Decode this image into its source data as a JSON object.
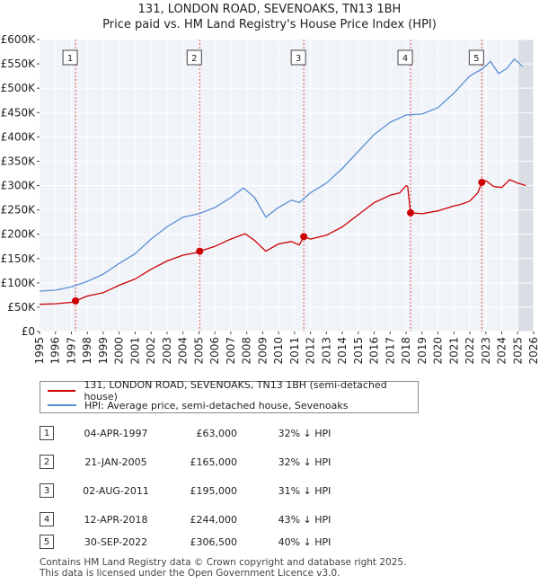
{
  "chart_data": {
    "type": "line",
    "title": "131, LONDON ROAD, SEVENOAKS, TN13 1BH",
    "subtitle": "Price paid vs. HM Land Registry's House Price Index (HPI)",
    "xlabel": "",
    "ylabel": "",
    "xlim": [
      1995,
      2026
    ],
    "ylim": [
      0,
      600000
    ],
    "y_ticks": [
      0,
      50000,
      100000,
      150000,
      200000,
      250000,
      300000,
      350000,
      400000,
      450000,
      500000,
      550000,
      600000
    ],
    "y_tick_labels": [
      "£0",
      "£50K",
      "£100K",
      "£150K",
      "£200K",
      "£250K",
      "£300K",
      "£350K",
      "£400K",
      "£450K",
      "£500K",
      "£550K",
      "£600K"
    ],
    "x_ticks": [
      1995,
      1996,
      1997,
      1998,
      1999,
      2000,
      2001,
      2002,
      2003,
      2004,
      2005,
      2006,
      2007,
      2008,
      2009,
      2010,
      2011,
      2012,
      2013,
      2014,
      2015,
      2016,
      2017,
      2018,
      2019,
      2020,
      2021,
      2022,
      2023,
      2024,
      2025,
      2026
    ],
    "x_tick_labels": [
      "1995",
      "1996",
      "1997",
      "1998",
      "1999",
      "2000",
      "2001",
      "2002",
      "2003",
      "2004",
      "2005",
      "2006",
      "2007",
      "2008",
      "2009",
      "2010",
      "2011",
      "2012",
      "2013",
      "2014",
      "2015",
      "2016",
      "2017",
      "2018",
      "2019",
      "2020",
      "2021",
      "2022",
      "2023",
      "2024",
      "2025",
      "2026"
    ],
    "grid": true,
    "forecast_start": 2025.0,
    "series": [
      {
        "name": "131, LONDON ROAD, SEVENOAKS, TN13 1BH (semi-detached house)",
        "color": "#cc0000",
        "x": [
          1995.0,
          1996.0,
          1997.0,
          1997.26,
          1998.0,
          1999.0,
          2000.0,
          2001.0,
          2002.0,
          2003.0,
          2004.0,
          2005.0,
          2005.05,
          2006.0,
          2007.0,
          2007.9,
          2008.5,
          2009.2,
          2010.0,
          2010.8,
          2011.3,
          2011.58,
          2012.0,
          2013.0,
          2014.0,
          2015.0,
          2016.0,
          2017.0,
          2017.6,
          2018.0,
          2018.1,
          2018.28,
          2019.0,
          2020.0,
          2021.0,
          2021.5,
          2022.0,
          2022.5,
          2022.75,
          2023.0,
          2023.5,
          2024.0,
          2024.5,
          2025.0,
          2025.5
        ],
        "y": [
          56000,
          57000,
          60000,
          63000,
          73000,
          80000,
          95000,
          108000,
          128000,
          145000,
          157000,
          163000,
          165000,
          175000,
          190000,
          201000,
          187000,
          165000,
          180000,
          185000,
          178000,
          195000,
          190000,
          198000,
          215000,
          240000,
          265000,
          280000,
          285000,
          300000,
          298000,
          244000,
          242000,
          248000,
          258000,
          262000,
          268000,
          285000,
          306500,
          310000,
          298000,
          296000,
          312000,
          305000,
          300000
        ]
      },
      {
        "name": "HPI: Average price, semi-detached house, Sevenoaks",
        "color": "#5b8fd4",
        "x": [
          1995.0,
          1996.0,
          1997.0,
          1998.0,
          1999.0,
          2000.0,
          2001.0,
          2002.0,
          2003.0,
          2004.0,
          2005.0,
          2006.0,
          2007.0,
          2007.8,
          2008.5,
          2009.2,
          2010.0,
          2010.8,
          2011.3,
          2012.0,
          2013.0,
          2014.0,
          2015.0,
          2016.0,
          2017.0,
          2018.0,
          2019.0,
          2020.0,
          2021.0,
          2022.0,
          2022.8,
          2023.3,
          2023.8,
          2024.3,
          2024.8,
          2025.3
        ],
        "y": [
          83000,
          85000,
          92000,
          103000,
          118000,
          140000,
          160000,
          190000,
          215000,
          235000,
          242000,
          255000,
          275000,
          295000,
          275000,
          235000,
          255000,
          270000,
          265000,
          285000,
          305000,
          335000,
          370000,
          405000,
          430000,
          445000,
          447000,
          460000,
          490000,
          525000,
          540000,
          555000,
          530000,
          540000,
          560000,
          545000
        ]
      }
    ],
    "sales": [
      {
        "label": "1",
        "date": "04-APR-1997",
        "year": 1997.26,
        "price": 63000
      },
      {
        "label": "2",
        "date": "21-JAN-2005",
        "year": 2005.05,
        "price": 165000
      },
      {
        "label": "3",
        "date": "02-AUG-2011",
        "year": 2011.58,
        "price": 195000
      },
      {
        "label": "4",
        "date": "12-APR-2018",
        "year": 2018.28,
        "price": 244000
      },
      {
        "label": "5",
        "date": "30-SEP-2022",
        "year": 2022.75,
        "price": 306500
      }
    ]
  },
  "legend": {
    "property_label": "131, LONDON ROAD, SEVENOAKS, TN13 1BH (semi-detached house)",
    "hpi_label": "HPI: Average price, semi-detached house, Sevenoaks"
  },
  "sales_table": [
    {
      "num": "1",
      "date": "04-APR-1997",
      "price": "£63,000",
      "diff": "32% ↓ HPI"
    },
    {
      "num": "2",
      "date": "21-JAN-2005",
      "price": "£165,000",
      "diff": "32% ↓ HPI"
    },
    {
      "num": "3",
      "date": "02-AUG-2011",
      "price": "£195,000",
      "diff": "31% ↓ HPI"
    },
    {
      "num": "4",
      "date": "12-APR-2018",
      "price": "£244,000",
      "diff": "43% ↓ HPI"
    },
    {
      "num": "5",
      "date": "30-SEP-2022",
      "price": "£306,500",
      "diff": "40% ↓ HPI"
    }
  ],
  "footer": {
    "line1": "Contains HM Land Registry data © Crown copyright and database right 2025.",
    "line2": "This data is licensed under the Open Government Licence v3.0."
  }
}
